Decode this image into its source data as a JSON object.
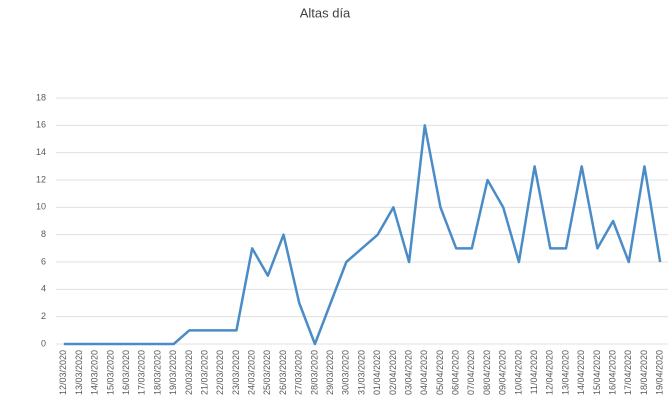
{
  "chart_data": {
    "type": "line",
    "title": "Altas día",
    "categories": [
      "12/03/2020",
      "13/03/2020",
      "14/03/2020",
      "15/03/2020",
      "16/03/2020",
      "17/03/2020",
      "18/03/2020",
      "19/03/2020",
      "20/03/2020",
      "21/03/2020",
      "22/03/2020",
      "23/03/2020",
      "24/03/2020",
      "25/03/2020",
      "26/03/2020",
      "27/03/2020",
      "28/03/2020",
      "29/03/2020",
      "30/03/2020",
      "31/03/2020",
      "01/04/2020",
      "02/04/2020",
      "03/04/2020",
      "04/04/2020",
      "05/04/2020",
      "06/04/2020",
      "07/04/2020",
      "08/04/2020",
      "09/04/2020",
      "10/04/2020",
      "11/04/2020",
      "12/04/2020",
      "13/04/2020",
      "14/04/2020",
      "15/04/2020",
      "16/04/2020",
      "17/04/2020",
      "18/04/2020",
      "19/04/2020"
    ],
    "values": [
      0,
      0,
      0,
      0,
      0,
      0,
      0,
      0,
      1,
      1,
      1,
      1,
      7,
      5,
      8,
      3,
      0,
      3,
      6,
      7,
      8,
      10,
      6,
      16,
      10,
      7,
      7,
      12,
      10,
      6,
      13,
      7,
      7,
      13,
      7,
      9,
      6,
      13,
      6
    ],
    "color": "#4a8cc8",
    "ylim": [
      0,
      18
    ],
    "yticks": [
      0,
      2,
      4,
      6,
      8,
      10,
      12,
      14,
      16,
      18
    ],
    "grid": true
  }
}
